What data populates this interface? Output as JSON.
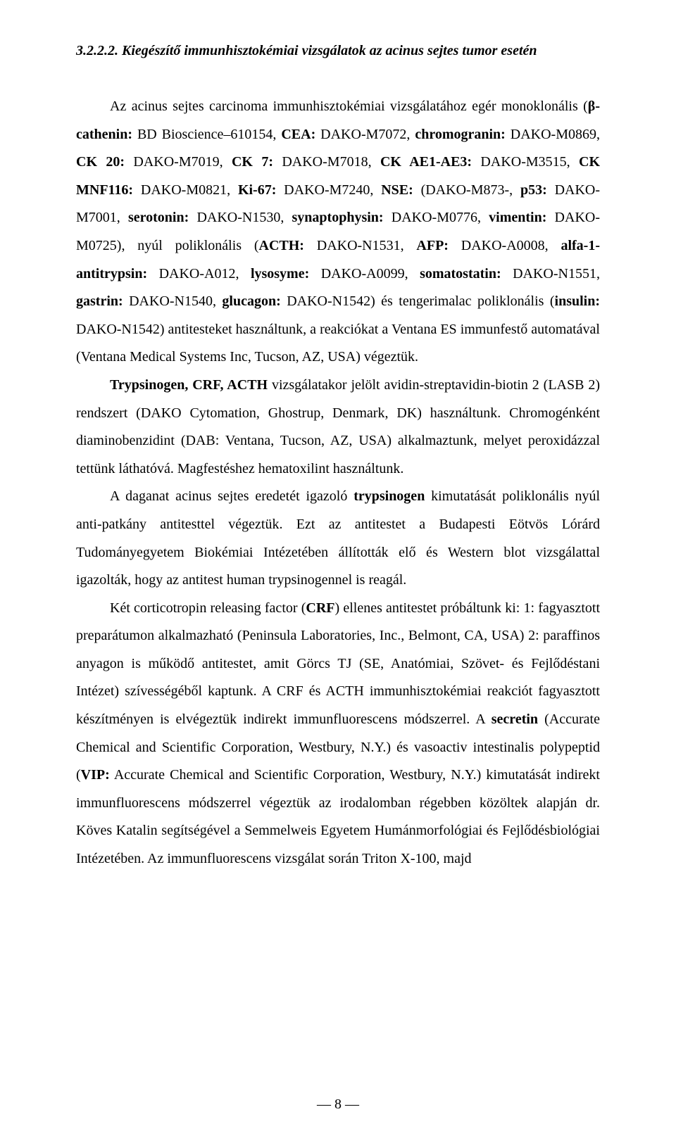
{
  "heading": "3.2.2.2. Kiegészítő immunhisztokémiai vizsgálatok az acinus sejtes tumor esetén",
  "p1": {
    "t1": "Az acinus sejtes carcinoma immunhisztokémiai vizsgálatához egér monoklonális (",
    "b1": "β-cathenin:",
    "t2": " BD Bioscience–610154, ",
    "b2": "CEA:",
    "t3": " DAKO-M7072, ",
    "b3": "chromogranin:",
    "t4": " DAKO-M0869, ",
    "b4": "CK 20:",
    "t5": " DAKO-M7019, ",
    "b5": "CK 7:",
    "t6": " DAKO-M7018, ",
    "b6": "CK AE1-AE3:",
    "t7": " DAKO-M3515, ",
    "b7": "CK MNF116:",
    "t8": " DAKO-M0821, ",
    "b8": "Ki-67:",
    "t9": " DAKO-M7240, ",
    "b9": "NSE:",
    "t10": " (DAKO-M873-, ",
    "b10": "p53:",
    "t11": " DAKO-M7001, ",
    "b11": "serotonin:",
    "t12": " DAKO-N1530, ",
    "b12": "synaptophysin:",
    "t13": " DAKO-M0776, ",
    "b13": "vimentin:",
    "t14": " DAKO-M0725), nyúl poliklonális (",
    "b14": "ACTH:",
    "t15": " DAKO-N1531, ",
    "b15": "AFP:",
    "t16": " DAKO-A0008, ",
    "b16": "alfa-1-antitrypsin:",
    "t17": " DAKO-A012, ",
    "b17": "lysosyme:",
    "t18": " DAKO-A0099, ",
    "b18": "somatostatin:",
    "t19": " DAKO-N1551, ",
    "b19": "gastrin:",
    "t20": " DAKO-N1540, ",
    "b20": "glucagon:",
    "t21": " DAKO-N1542) és tengerimalac poliklonális (",
    "b21": "insulin:",
    "t22": " DAKO-N1542) antitesteket használtunk, a reakciókat a Ventana ES immunfestő automatával (Ventana Medical Systems Inc, Tucson, AZ, USA) végeztük."
  },
  "p2": {
    "b1": "Trypsinogen, CRF, ACTH",
    "t1": " vizsgálatakor jelölt avidin-streptavidin-biotin 2 (LASB 2) rendszert (DAKO Cytomation, Ghostrup, Denmark, DK) használtunk. Chromogénként diaminobenzidint (DAB: Ventana, Tucson, AZ, USA) alkalmaztunk, melyet peroxidázzal tettünk láthatóvá. Magfestéshez hematoxilint használtunk."
  },
  "p3": {
    "t1": "A daganat acinus sejtes eredetét igazoló ",
    "b1": "trypsinogen",
    "t2": " kimutatását poliklonális nyúl anti-patkány antitesttel végeztük. Ezt az antitestet a Budapesti Eötvös Lórárd Tudományegyetem Biokémiai Intézetében állították elő és Western blot vizsgálattal igazolták, hogy az antitest human trypsinogennel is reagál."
  },
  "p4": {
    "t1": "Két corticotropin releasing factor (",
    "b1": "CRF",
    "t2": ") ellenes antitestet próbáltunk ki: 1: fagyasztott preparátumon alkalmazható (Peninsula Laboratories, Inc., Belmont, CA, USA) 2: paraffinos anyagon is működő antitestet, amit Görcs TJ (SE, Anatómiai, Szövet- és Fejlődéstani Intézet) szívességéből kaptunk. A CRF és ACTH immunhisztokémiai reakciót fagyasztott készítményen is elvégeztük indirekt immunfluorescens módszerrel. A ",
    "b2": "secretin",
    "t3": " (Accurate Chemical and Scientific Corporation, Westbury, N.Y.) és vasoactiv intestinalis polypeptid (",
    "b3": "VIP:",
    "t4": " Accurate Chemical and Scientific Corporation, Westbury, N.Y.) kimutatását indirekt immunfluorescens módszerrel végeztük az irodalomban régebben közöltek alapján dr. Köves Katalin segítségével a Semmelweis Egyetem Humánmorfológiai és Fejlődésbiológiai Intézetében. Az immunfluorescens vizsgálat során Triton X-100, majd"
  },
  "page_number": "— 8 —"
}
